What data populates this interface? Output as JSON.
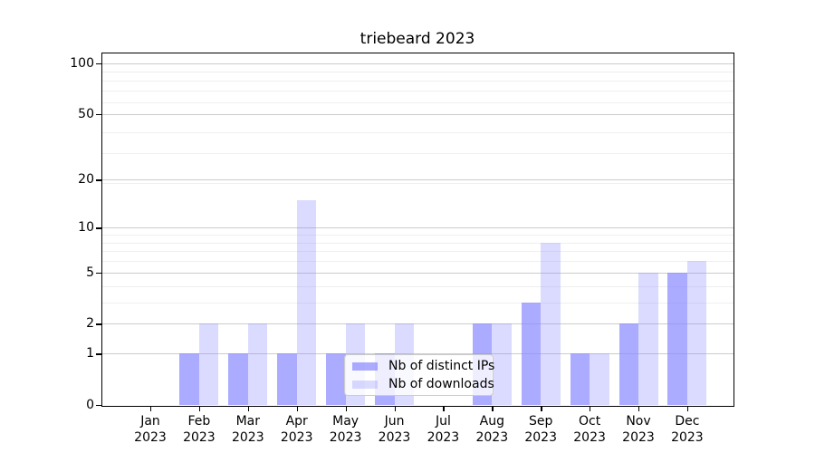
{
  "chart_data": {
    "type": "bar",
    "title": "triebeard 2023",
    "categories": [
      "Jan 2023",
      "Feb 2023",
      "Mar 2023",
      "Apr 2023",
      "May 2023",
      "Jun 2023",
      "Jul 2023",
      "Aug 2023",
      "Sep 2023",
      "Oct 2023",
      "Nov 2023",
      "Dec 2023"
    ],
    "series": [
      {
        "name": "Nb of distinct IPs",
        "color": "rgba(136,136,255,0.70)",
        "values": [
          0,
          1,
          1,
          1,
          1,
          1,
          0,
          2,
          3,
          1,
          2,
          5
        ]
      },
      {
        "name": "Nb of downloads",
        "color": "rgba(136,136,255,0.30)",
        "values": [
          0,
          2,
          2,
          15,
          2,
          2,
          0,
          2,
          8,
          1,
          5,
          6
        ]
      }
    ],
    "xlabel": "",
    "ylabel": "",
    "yscale": "log1p",
    "ylim": [
      0,
      100
    ],
    "yticks": [
      0,
      1,
      2,
      5,
      10,
      20,
      50,
      100
    ],
    "minor_gridlines": [
      3,
      4,
      6,
      7,
      8,
      9,
      19,
      29,
      39,
      59,
      69,
      79,
      89
    ],
    "grid": true,
    "legend_position": "lower center",
    "colors": {
      "axis": "#000000",
      "major_grid": "#cccccc",
      "minor_grid": "#efefef",
      "background": "#ffffff"
    }
  }
}
